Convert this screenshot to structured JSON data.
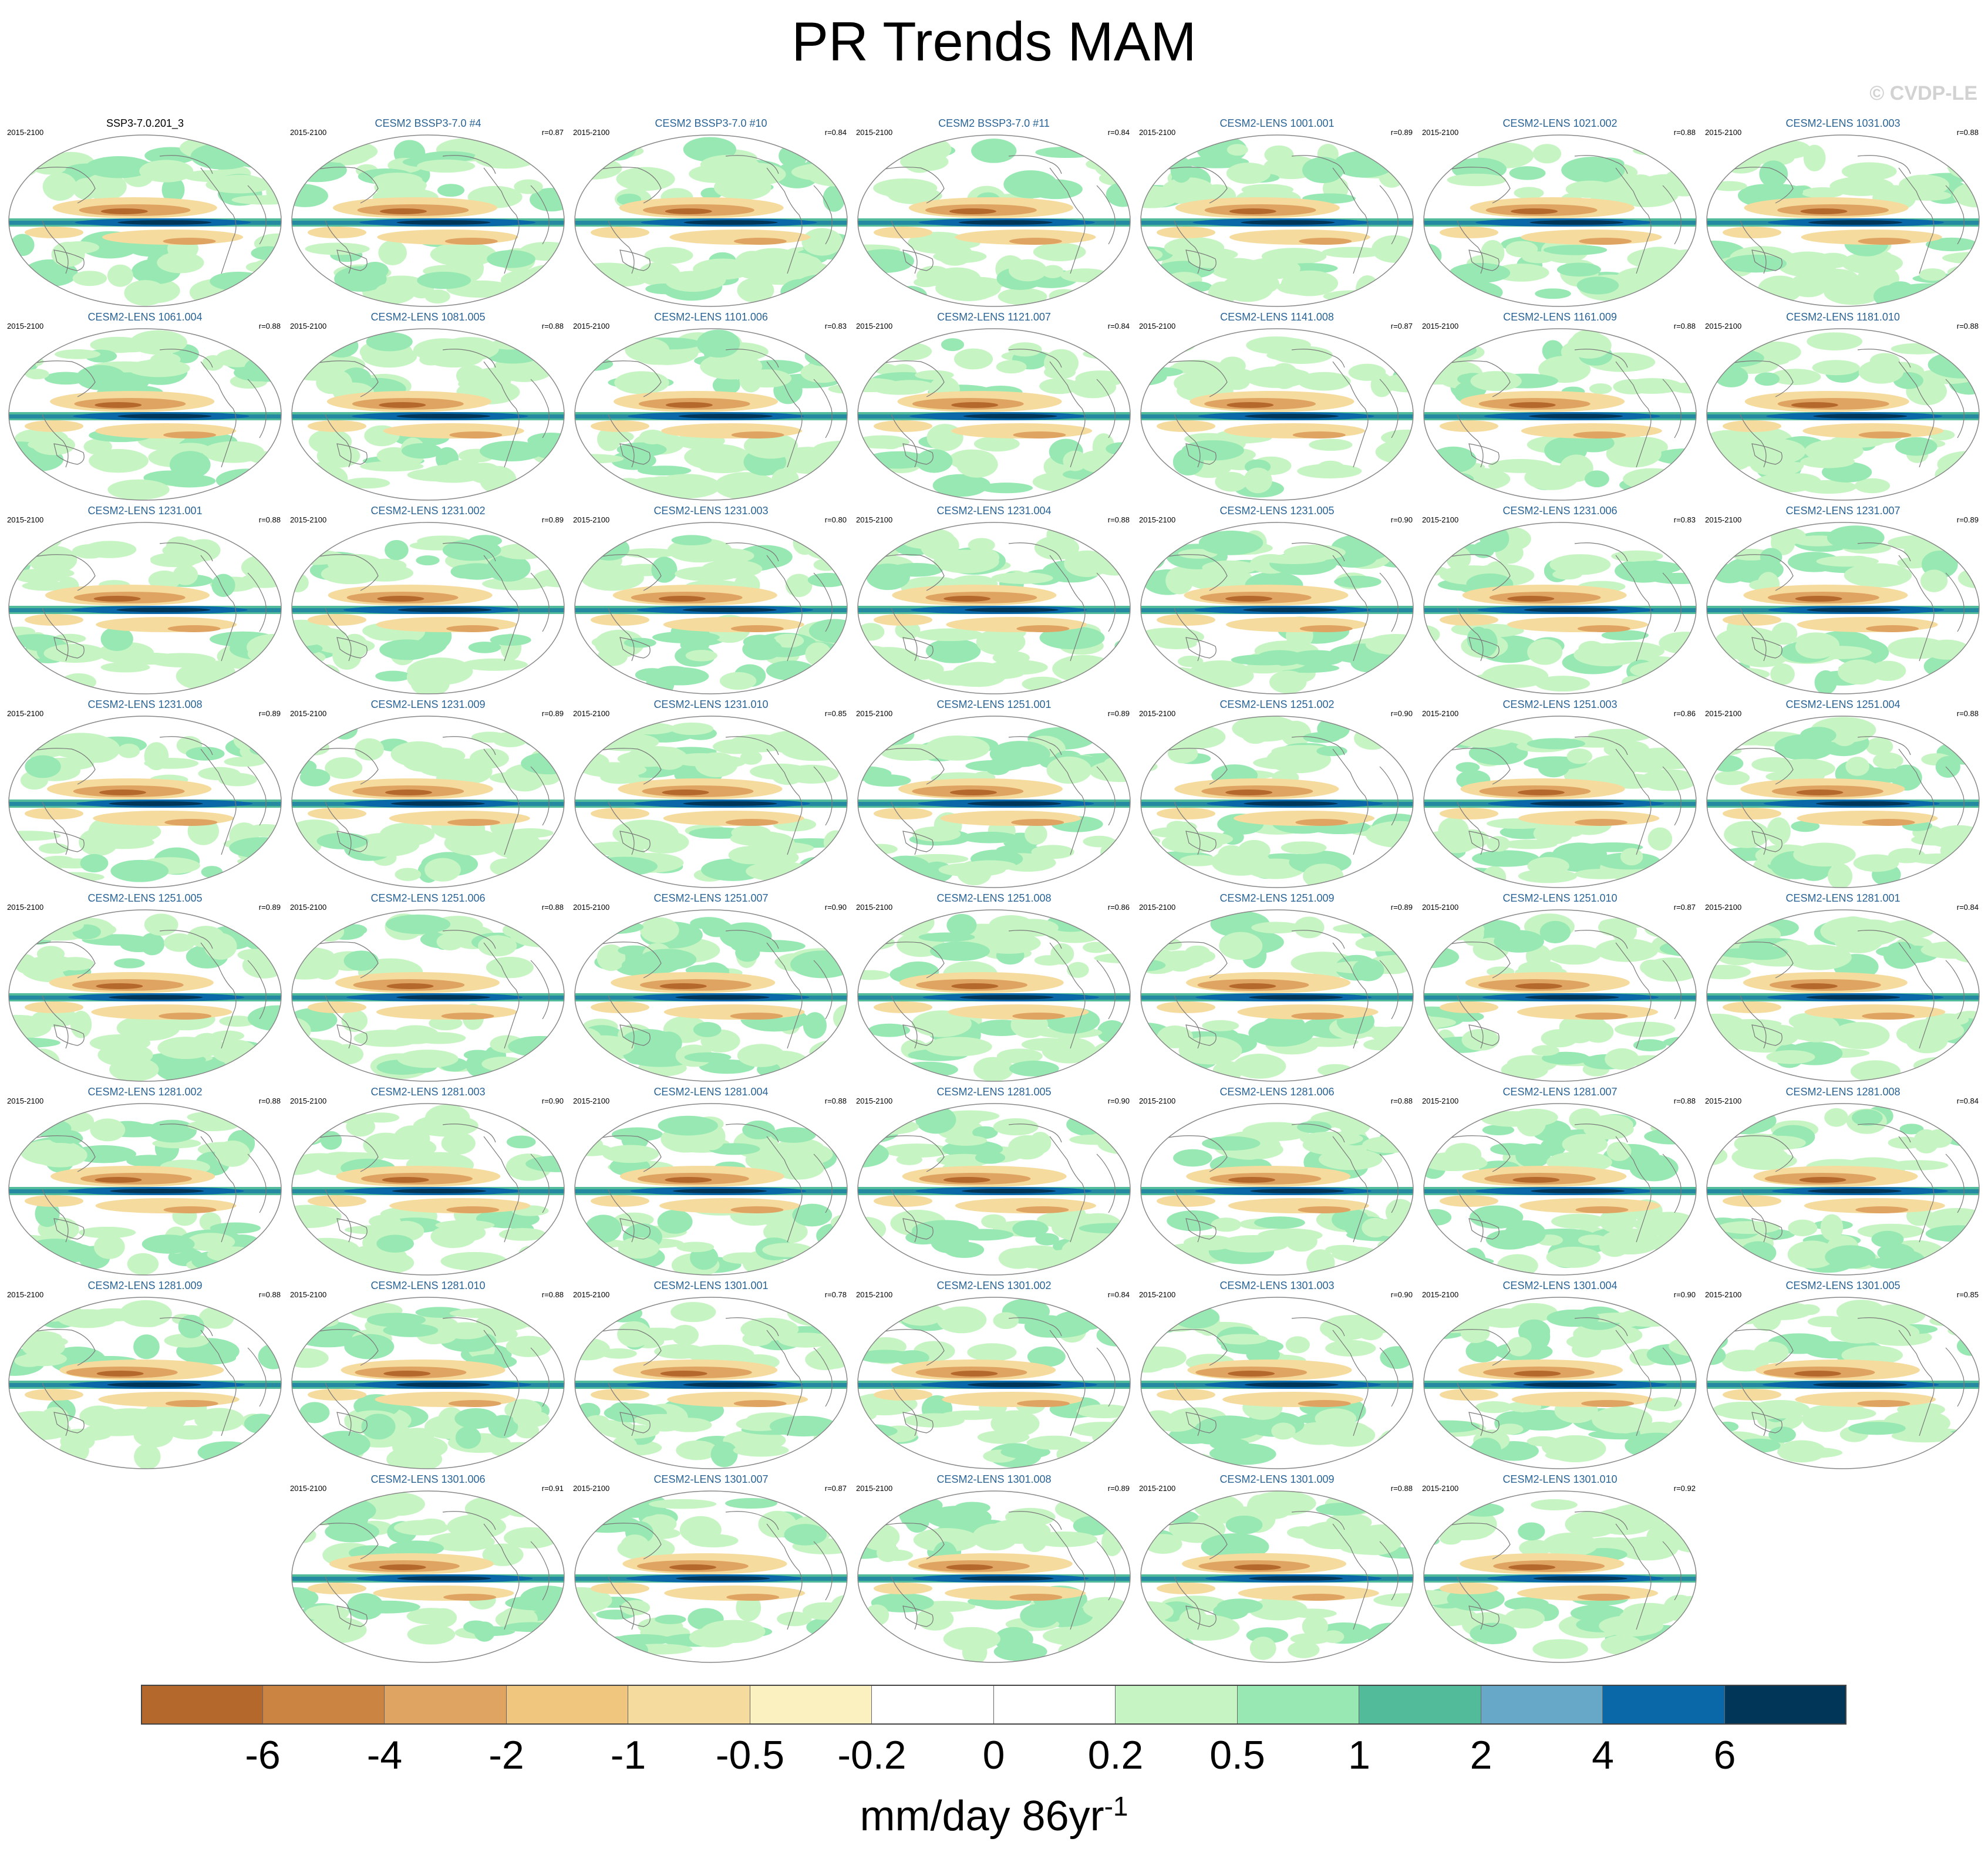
{
  "figure": {
    "title": "PR Trends MAM",
    "copyright": "© CVDP-LE"
  },
  "panels": [
    {
      "name": "SSP3-7.0.201_3",
      "period": "2015-2100",
      "r": "",
      "obs": true
    },
    {
      "name": "CESM2 BSSP3-7.0 #4",
      "period": "2015-2100",
      "r": "r=0.87"
    },
    {
      "name": "CESM2 BSSP3-7.0 #10",
      "period": "2015-2100",
      "r": "r=0.84"
    },
    {
      "name": "CESM2 BSSP3-7.0 #11",
      "period": "2015-2100",
      "r": "r=0.84"
    },
    {
      "name": "CESM2-LENS 1001.001",
      "period": "2015-2100",
      "r": "r=0.89"
    },
    {
      "name": "CESM2-LENS 1021.002",
      "period": "2015-2100",
      "r": "r=0.88"
    },
    {
      "name": "CESM2-LENS 1031.003",
      "period": "2015-2100",
      "r": "r=0.88"
    },
    {
      "name": "CESM2-LENS 1061.004",
      "period": "2015-2100",
      "r": "r=0.88"
    },
    {
      "name": "CESM2-LENS 1081.005",
      "period": "2015-2100",
      "r": "r=0.88"
    },
    {
      "name": "CESM2-LENS 1101.006",
      "period": "2015-2100",
      "r": "r=0.83"
    },
    {
      "name": "CESM2-LENS 1121.007",
      "period": "2015-2100",
      "r": "r=0.84"
    },
    {
      "name": "CESM2-LENS 1141.008",
      "period": "2015-2100",
      "r": "r=0.87"
    },
    {
      "name": "CESM2-LENS 1161.009",
      "period": "2015-2100",
      "r": "r=0.88"
    },
    {
      "name": "CESM2-LENS 1181.010",
      "period": "2015-2100",
      "r": "r=0.88"
    },
    {
      "name": "CESM2-LENS 1231.001",
      "period": "2015-2100",
      "r": "r=0.88"
    },
    {
      "name": "CESM2-LENS 1231.002",
      "period": "2015-2100",
      "r": "r=0.89"
    },
    {
      "name": "CESM2-LENS 1231.003",
      "period": "2015-2100",
      "r": "r=0.80"
    },
    {
      "name": "CESM2-LENS 1231.004",
      "period": "2015-2100",
      "r": "r=0.88"
    },
    {
      "name": "CESM2-LENS 1231.005",
      "period": "2015-2100",
      "r": "r=0.90"
    },
    {
      "name": "CESM2-LENS 1231.006",
      "period": "2015-2100",
      "r": "r=0.83"
    },
    {
      "name": "CESM2-LENS 1231.007",
      "period": "2015-2100",
      "r": "r=0.89"
    },
    {
      "name": "CESM2-LENS 1231.008",
      "period": "2015-2100",
      "r": "r=0.89"
    },
    {
      "name": "CESM2-LENS 1231.009",
      "period": "2015-2100",
      "r": "r=0.89"
    },
    {
      "name": "CESM2-LENS 1231.010",
      "period": "2015-2100",
      "r": "r=0.85"
    },
    {
      "name": "CESM2-LENS 1251.001",
      "period": "2015-2100",
      "r": "r=0.89"
    },
    {
      "name": "CESM2-LENS 1251.002",
      "period": "2015-2100",
      "r": "r=0.90"
    },
    {
      "name": "CESM2-LENS 1251.003",
      "period": "2015-2100",
      "r": "r=0.86"
    },
    {
      "name": "CESM2-LENS 1251.004",
      "period": "2015-2100",
      "r": "r=0.88"
    },
    {
      "name": "CESM2-LENS 1251.005",
      "period": "2015-2100",
      "r": "r=0.89"
    },
    {
      "name": "CESM2-LENS 1251.006",
      "period": "2015-2100",
      "r": "r=0.88"
    },
    {
      "name": "CESM2-LENS 1251.007",
      "period": "2015-2100",
      "r": "r=0.90"
    },
    {
      "name": "CESM2-LENS 1251.008",
      "period": "2015-2100",
      "r": "r=0.86"
    },
    {
      "name": "CESM2-LENS 1251.009",
      "period": "2015-2100",
      "r": "r=0.89"
    },
    {
      "name": "CESM2-LENS 1251.010",
      "period": "2015-2100",
      "r": "r=0.87"
    },
    {
      "name": "CESM2-LENS 1281.001",
      "period": "2015-2100",
      "r": "r=0.84"
    },
    {
      "name": "CESM2-LENS 1281.002",
      "period": "2015-2100",
      "r": "r=0.88"
    },
    {
      "name": "CESM2-LENS 1281.003",
      "period": "2015-2100",
      "r": "r=0.90"
    },
    {
      "name": "CESM2-LENS 1281.004",
      "period": "2015-2100",
      "r": "r=0.88"
    },
    {
      "name": "CESM2-LENS 1281.005",
      "period": "2015-2100",
      "r": "r=0.90"
    },
    {
      "name": "CESM2-LENS 1281.006",
      "period": "2015-2100",
      "r": "r=0.88"
    },
    {
      "name": "CESM2-LENS 1281.007",
      "period": "2015-2100",
      "r": "r=0.88"
    },
    {
      "name": "CESM2-LENS 1281.008",
      "period": "2015-2100",
      "r": "r=0.84"
    },
    {
      "name": "CESM2-LENS 1281.009",
      "period": "2015-2100",
      "r": "r=0.88"
    },
    {
      "name": "CESM2-LENS 1281.010",
      "period": "2015-2100",
      "r": "r=0.88"
    },
    {
      "name": "CESM2-LENS 1301.001",
      "period": "2015-2100",
      "r": "r=0.78"
    },
    {
      "name": "CESM2-LENS 1301.002",
      "period": "2015-2100",
      "r": "r=0.84"
    },
    {
      "name": "CESM2-LENS 1301.003",
      "period": "2015-2100",
      "r": "r=0.90"
    },
    {
      "name": "CESM2-LENS 1301.004",
      "period": "2015-2100",
      "r": "r=0.90"
    },
    {
      "name": "CESM2-LENS 1301.005",
      "period": "2015-2100",
      "r": "r=0.85"
    },
    {
      "name": "CESM2-LENS 1301.006",
      "period": "2015-2100",
      "r": "r=0.91"
    },
    {
      "name": "CESM2-LENS 1301.007",
      "period": "2015-2100",
      "r": "r=0.87"
    },
    {
      "name": "CESM2-LENS 1301.008",
      "period": "2015-2100",
      "r": "r=0.89"
    },
    {
      "name": "CESM2-LENS 1301.009",
      "period": "2015-2100",
      "r": "r=0.88"
    },
    {
      "name": "CESM2-LENS 1301.010",
      "period": "2015-2100",
      "r": "r=0.92"
    }
  ],
  "colorbar": {
    "units": "mm/day 86yr",
    "units_exponent": "-1",
    "colors": [
      "#b5682b",
      "#cc8442",
      "#dfa362",
      "#f0c57d",
      "#f5dc9e",
      "#fbf0c0",
      "#ffffff",
      "#ffffff",
      "#c6f5c3",
      "#98e8b3",
      "#52bb9a",
      "#67a8c8",
      "#0a68a8",
      "#013659"
    ],
    "ticks": [
      "-6",
      "-4",
      "-2",
      "-1",
      "-0.5",
      "-0.2",
      "0",
      "0.2",
      "0.5",
      "1",
      "2",
      "4",
      "6"
    ]
  },
  "map_palette": {
    "ocean": "#ffffff",
    "wet_light": "#c6f5c3",
    "wet_mid": "#98e8b3",
    "wet_strong": "#52bb9a",
    "wet_blue": "#0a68a8",
    "wet_dark": "#013659",
    "dry_light": "#f5dc9e",
    "dry_mid": "#dfa362",
    "dry_strong": "#b5682b",
    "coast": "#7a7a7a",
    "frame": "#888888"
  }
}
